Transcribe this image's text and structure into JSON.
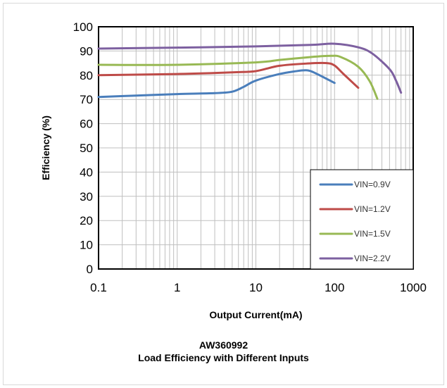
{
  "chart_data": {
    "type": "line",
    "xlabel": "Output Current(mA)",
    "ylabel": "Efficiency (%)",
    "xscale": "log",
    "xlim": [
      0.1,
      1000
    ],
    "ylim": [
      0,
      100
    ],
    "y_ticks": [
      0,
      10,
      20,
      30,
      40,
      50,
      60,
      70,
      80,
      90,
      100
    ],
    "x_ticks": [
      0.1,
      1,
      10,
      100,
      1000
    ],
    "x_tick_labels": [
      "0.1",
      "1",
      "10",
      "100",
      "1000"
    ],
    "grid": true,
    "legend_position": "lower-right",
    "series": [
      {
        "name": "VIN=0.9V",
        "color": "#4a7ebb",
        "x": [
          0.1,
          0.3,
          1,
          3,
          5,
          7,
          10,
          20,
          30,
          45,
          60,
          100
        ],
        "y": [
          71,
          71.6,
          72.2,
          72.6,
          73.2,
          75.2,
          77.8,
          80.5,
          81.5,
          82,
          80.5,
          76.8
        ]
      },
      {
        "name": "VIN=1.2V",
        "color": "#be4b48",
        "x": [
          0.1,
          1,
          5,
          10,
          20,
          50,
          80,
          100,
          130,
          200
        ],
        "y": [
          80,
          80.5,
          81.2,
          81.7,
          83.9,
          84.9,
          85,
          84,
          80.5,
          74.8
        ]
      },
      {
        "name": "VIN=1.5V",
        "color": "#98b954",
        "x": [
          0.1,
          1,
          10,
          20,
          50,
          90,
          120,
          200,
          280,
          350
        ],
        "y": [
          84.3,
          84.3,
          85.3,
          86.3,
          87.5,
          88,
          87.5,
          83.5,
          77.5,
          70.3
        ]
      },
      {
        "name": "VIN=2.2V",
        "color": "#7d60a0",
        "x": [
          0.1,
          1,
          10,
          50,
          100,
          200,
          300,
          500,
          600,
          700
        ],
        "y": [
          91,
          91.4,
          91.9,
          92.5,
          93,
          91.5,
          89,
          82.5,
          78,
          72.8
        ]
      }
    ]
  },
  "caption": {
    "line1": "AW360992",
    "line2": "Load Efficiency with Different Inputs"
  }
}
